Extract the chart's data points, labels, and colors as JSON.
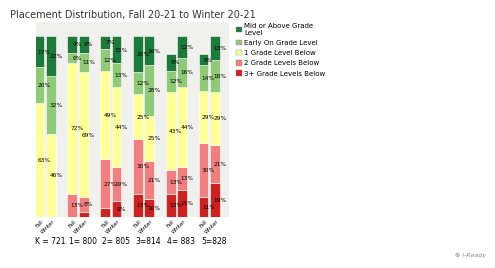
{
  "title": "Placement Distribution, Fall 20-21 to Winter 20-21",
  "groups": [
    "K = 721",
    "1= 800",
    "2= 805",
    "3=814",
    "4= 883",
    "5=828"
  ],
  "colors": [
    "#cc2222",
    "#f08080",
    "#ffff99",
    "#90c978",
    "#1e7a3a"
  ],
  "data": [
    [
      0,
      0,
      63,
      20,
      17
    ],
    [
      0,
      0,
      46,
      32,
      22
    ],
    [
      0,
      13,
      72,
      6,
      9
    ],
    [
      3,
      8,
      69,
      11,
      9
    ],
    [
      5,
      27,
      49,
      12,
      7
    ],
    [
      9,
      19,
      44,
      13,
      15
    ],
    [
      13,
      30,
      25,
      12,
      20
    ],
    [
      10,
      21,
      25,
      28,
      16
    ],
    [
      13,
      13,
      43,
      12,
      9
    ],
    [
      15,
      13,
      44,
      16,
      12
    ],
    [
      11,
      30,
      29,
      14,
      6
    ],
    [
      19,
      21,
      29,
      18,
      13
    ]
  ],
  "bar_sublabels": [
    "Fall",
    "Winter",
    "Fall",
    "Winter",
    "Fall",
    "Winter",
    "Fall",
    "Winter",
    "Fall",
    "Winter",
    "Fall",
    "Winter"
  ],
  "legend_labels": [
    "Mid or Above Grade\nLevel",
    "Early On Grade Level",
    "1 Grade Level Below",
    "2 Grade Levels Below",
    "3+ Grade Levels Below"
  ],
  "legend_colors": [
    "#1e7a3a",
    "#90c978",
    "#ffff99",
    "#f08080",
    "#cc2222"
  ],
  "bg_color": "#ffffff",
  "plot_bg": "#f0f0ef",
  "title_fontsize": 7,
  "label_fontsize": 4.2,
  "group_fontsize": 5.5
}
